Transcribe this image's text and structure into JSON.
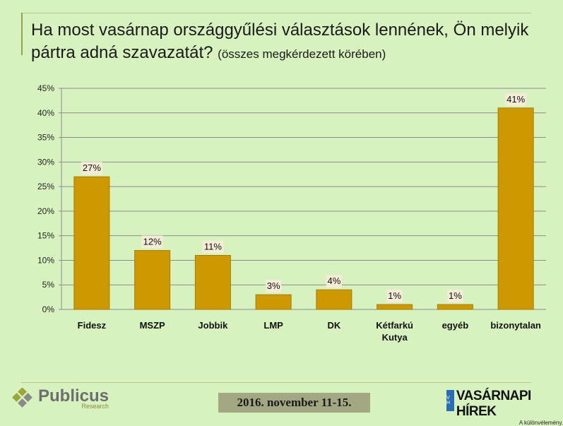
{
  "header": {
    "title_main": "Ha most vasárnap országgyűlési választások lennének, Ön melyik pártra adná szavazatát?",
    "title_sub": "(összes megkérdezett körében)"
  },
  "chart_data": {
    "type": "bar",
    "categories": [
      "Fidesz",
      "MSZP",
      "Jobbik",
      "LMP",
      "DK",
      "Kétfarkú Kutya",
      "egyéb",
      "bizonytalan"
    ],
    "category_lines": [
      [
        "Fidesz"
      ],
      [
        "MSZP"
      ],
      [
        "Jobbik"
      ],
      [
        "LMP"
      ],
      [
        "DK"
      ],
      [
        "Kétfarkú",
        "Kutya"
      ],
      [
        "egyéb"
      ],
      [
        "bizonytalan"
      ]
    ],
    "values": [
      27,
      12,
      11,
      3,
      4,
      1,
      1,
      41
    ],
    "value_labels": [
      "27%",
      "12%",
      "11%",
      "3%",
      "4%",
      "1%",
      "1%",
      "41%"
    ],
    "yticks": [
      0,
      5,
      10,
      15,
      20,
      25,
      30,
      35,
      40,
      45
    ],
    "ytick_labels": [
      "0%",
      "5%",
      "10%",
      "15%",
      "20%",
      "25%",
      "30%",
      "35%",
      "40%",
      "45%"
    ],
    "ylim": [
      0,
      45
    ],
    "grid": true,
    "colors": {
      "bar": "#cc9900",
      "bar_edge": "#a77d00",
      "label_bg": "#f5ecd8",
      "grid": "#8c8c8c"
    }
  },
  "footer": {
    "date": "2016. november 11-15.",
    "logo_left_name": "Publicus",
    "logo_left_tag": "Research",
    "logo_right_vh": "V H",
    "logo_right_name": "VASÁRNAPI HÍREK",
    "logo_right_tag": "A különvélemény."
  }
}
